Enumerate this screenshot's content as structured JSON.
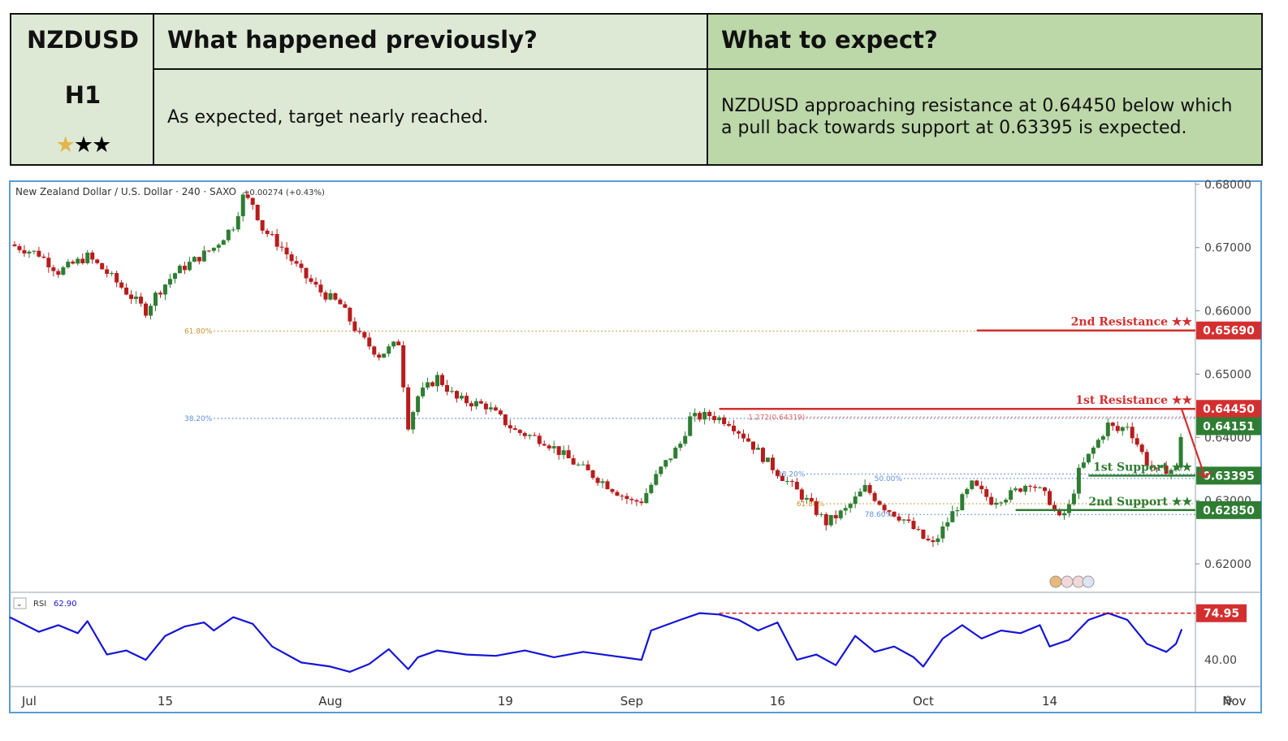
{
  "header": {
    "symbol": "NZDUSD",
    "timeframe": "H1",
    "rating": {
      "filled": 1,
      "total": 3
    },
    "previous_title": "What happened previously?",
    "previous_text": "As expected, target nearly reached.",
    "expect_title": "What to expect?",
    "expect_text": "NZDUSD approaching resistance at 0.64450 below which a pull back towards support at 0.63395 is expected."
  },
  "colors": {
    "header_light": "#dde9d5",
    "header_dark": "#bcd7a8",
    "resistance": "#d32f2f",
    "support": "#2e7d32",
    "rsi_line": "#1515d6",
    "candle_up": "#2e7d32",
    "candle_down": "#b71c1c",
    "frame": "#5b9bd5"
  },
  "chart_data": {
    "type": "candlestick",
    "title": "New Zealand Dollar / U.S. Dollar · 240 · SAXO",
    "change_text": "+0.00274 (+0.43%)",
    "ylim": [
      0.6155,
      0.6805
    ],
    "y_ticks": [
      "0.68000",
      "0.67000",
      "0.66000",
      "0.65000",
      "0.64000",
      "0.63000",
      "0.62000"
    ],
    "x_ticks": [
      "Jul",
      "15",
      "Aug",
      "19",
      "Sep",
      "16",
      "Oct",
      "14",
      "Nov"
    ],
    "x_tick_days": [
      0,
      14,
      31,
      49,
      62,
      77,
      92,
      105,
      124
    ],
    "x_range_days": [
      -2,
      120
    ],
    "close_path": [
      {
        "day": -2,
        "close": 0.6705
      },
      {
        "day": 1,
        "close": 0.669
      },
      {
        "day": 3,
        "close": 0.6662
      },
      {
        "day": 6,
        "close": 0.6686
      },
      {
        "day": 8,
        "close": 0.666
      },
      {
        "day": 10,
        "close": 0.663
      },
      {
        "day": 12,
        "close": 0.66
      },
      {
        "day": 13,
        "close": 0.6625
      },
      {
        "day": 15,
        "close": 0.666
      },
      {
        "day": 17,
        "close": 0.668
      },
      {
        "day": 19,
        "close": 0.67
      },
      {
        "day": 21,
        "close": 0.6735
      },
      {
        "day": 22,
        "close": 0.678
      },
      {
        "day": 23,
        "close": 0.677
      },
      {
        "day": 24,
        "close": 0.673
      },
      {
        "day": 26,
        "close": 0.67
      },
      {
        "day": 28,
        "close": 0.666
      },
      {
        "day": 30,
        "close": 0.663
      },
      {
        "day": 32,
        "close": 0.661
      },
      {
        "day": 34,
        "close": 0.656
      },
      {
        "day": 36,
        "close": 0.653
      },
      {
        "day": 38,
        "close": 0.655
      },
      {
        "day": 39,
        "close": 0.642
      },
      {
        "day": 40,
        "close": 0.6465
      },
      {
        "day": 42,
        "close": 0.6495
      },
      {
        "day": 44,
        "close": 0.646
      },
      {
        "day": 47,
        "close": 0.645
      },
      {
        "day": 50,
        "close": 0.641
      },
      {
        "day": 53,
        "close": 0.6395
      },
      {
        "day": 56,
        "close": 0.636
      },
      {
        "day": 59,
        "close": 0.633
      },
      {
        "day": 62,
        "close": 0.6298
      },
      {
        "day": 63,
        "close": 0.63
      },
      {
        "day": 65,
        "close": 0.635
      },
      {
        "day": 67,
        "close": 0.639
      },
      {
        "day": 68,
        "close": 0.643
      },
      {
        "day": 70,
        "close": 0.6435
      },
      {
        "day": 72,
        "close": 0.6425
      },
      {
        "day": 74,
        "close": 0.6395
      },
      {
        "day": 76,
        "close": 0.636
      },
      {
        "day": 78,
        "close": 0.633
      },
      {
        "day": 80,
        "close": 0.63
      },
      {
        "day": 82,
        "close": 0.6265
      },
      {
        "day": 84,
        "close": 0.6285
      },
      {
        "day": 86,
        "close": 0.632
      },
      {
        "day": 88,
        "close": 0.629
      },
      {
        "day": 90,
        "close": 0.627
      },
      {
        "day": 92,
        "close": 0.624
      },
      {
        "day": 93,
        "close": 0.623
      },
      {
        "day": 95,
        "close": 0.628
      },
      {
        "day": 97,
        "close": 0.6325
      },
      {
        "day": 99,
        "close": 0.63
      },
      {
        "day": 101,
        "close": 0.631
      },
      {
        "day": 103,
        "close": 0.633
      },
      {
        "day": 105,
        "close": 0.63
      },
      {
        "day": 106,
        "close": 0.627
      },
      {
        "day": 107,
        "close": 0.629
      },
      {
        "day": 108,
        "close": 0.6345
      },
      {
        "day": 110,
        "close": 0.6395
      },
      {
        "day": 111,
        "close": 0.642
      },
      {
        "day": 112,
        "close": 0.641
      },
      {
        "day": 113,
        "close": 0.642
      },
      {
        "day": 114,
        "close": 0.639
      },
      {
        "day": 115,
        "close": 0.636
      },
      {
        "day": 116,
        "close": 0.6345
      },
      {
        "day": 117,
        "close": 0.635
      },
      {
        "day": 118,
        "close": 0.6348
      },
      {
        "day": 118.6,
        "close": 0.6415
      }
    ],
    "levels": [
      {
        "name": "2nd Resistance",
        "label": "2nd Resistance ★★",
        "value": 0.6569,
        "value_label": "0.65690",
        "kind": "resistance",
        "from_day": 97.5
      },
      {
        "name": "1st Resistance",
        "label": "1st Resistance ★★",
        "value": 0.6445,
        "value_label": "0.64450",
        "kind": "resistance",
        "from_day": 71
      },
      {
        "name": "1st Support",
        "label": "1st Support ★★",
        "value": 0.63395,
        "value_label": "0.63395",
        "kind": "support",
        "from_day": 109
      },
      {
        "name": "2nd Support",
        "label": "2nd Support ★★",
        "value": 0.6285,
        "value_label": "0.62850",
        "kind": "support",
        "from_day": 101.5
      }
    ],
    "current_price": {
      "value": 0.64151,
      "label": "0.64151"
    },
    "fibonacci": [
      {
        "label": "61.80%",
        "value": 0.6568,
        "color": "#c8952b",
        "from_day": 19
      },
      {
        "label": "38.20%",
        "value": 0.643,
        "color": "#5b8fd6",
        "from_day": 19
      },
      {
        "label": "1.272(0.64319)",
        "value": 0.6432,
        "color": "#d66",
        "from_day": 80
      },
      {
        "label": "38.20%",
        "value": 0.6342,
        "color": "#5b8fd6",
        "from_day": 80
      },
      {
        "label": "50.00%",
        "value": 0.6335,
        "color": "#5b8fd6",
        "from_day": 90
      },
      {
        "label": "61.80%",
        "value": 0.6295,
        "color": "#c8952b",
        "from_day": 82
      },
      {
        "label": "78.60%",
        "value": 0.6278,
        "color": "#5b8fd6",
        "from_day": 89
      }
    ],
    "projection": {
      "from_day": 118.6,
      "from_value": 0.6444,
      "to_day": 121,
      "to_value": 0.63365
    },
    "rsi": {
      "label": "RSI",
      "value_text": "62.90",
      "ylim": [
        20,
        90
      ],
      "y_ticks": [
        {
          "value": 40,
          "label": "40.00"
        }
      ],
      "marker": {
        "value": 74.95,
        "label": "74.95",
        "from_day": 71
      },
      "path": [
        {
          "day": -2,
          "v": 72
        },
        {
          "day": 1,
          "v": 61
        },
        {
          "day": 3,
          "v": 66
        },
        {
          "day": 5,
          "v": 60
        },
        {
          "day": 6,
          "v": 69
        },
        {
          "day": 8,
          "v": 44
        },
        {
          "day": 10,
          "v": 47
        },
        {
          "day": 12,
          "v": 40
        },
        {
          "day": 14,
          "v": 58
        },
        {
          "day": 16,
          "v": 65
        },
        {
          "day": 18,
          "v": 68
        },
        {
          "day": 19,
          "v": 62
        },
        {
          "day": 21,
          "v": 72
        },
        {
          "day": 23,
          "v": 67
        },
        {
          "day": 25,
          "v": 50
        },
        {
          "day": 28,
          "v": 38
        },
        {
          "day": 31,
          "v": 35
        },
        {
          "day": 33,
          "v": 31
        },
        {
          "day": 35,
          "v": 37
        },
        {
          "day": 37,
          "v": 48
        },
        {
          "day": 39,
          "v": 33
        },
        {
          "day": 40,
          "v": 42
        },
        {
          "day": 42,
          "v": 47
        },
        {
          "day": 45,
          "v": 44
        },
        {
          "day": 48,
          "v": 43
        },
        {
          "day": 51,
          "v": 47
        },
        {
          "day": 54,
          "v": 42
        },
        {
          "day": 57,
          "v": 46
        },
        {
          "day": 60,
          "v": 43
        },
        {
          "day": 63,
          "v": 40
        },
        {
          "day": 64,
          "v": 62
        },
        {
          "day": 67,
          "v": 70
        },
        {
          "day": 69,
          "v": 75
        },
        {
          "day": 71,
          "v": 74
        },
        {
          "day": 73,
          "v": 70
        },
        {
          "day": 75,
          "v": 62
        },
        {
          "day": 77,
          "v": 68
        },
        {
          "day": 79,
          "v": 40
        },
        {
          "day": 81,
          "v": 44
        },
        {
          "day": 83,
          "v": 36
        },
        {
          "day": 85,
          "v": 58
        },
        {
          "day": 87,
          "v": 46
        },
        {
          "day": 89,
          "v": 50
        },
        {
          "day": 91,
          "v": 42
        },
        {
          "day": 92,
          "v": 35
        },
        {
          "day": 94,
          "v": 56
        },
        {
          "day": 96,
          "v": 66
        },
        {
          "day": 98,
          "v": 56
        },
        {
          "day": 100,
          "v": 62
        },
        {
          "day": 102,
          "v": 60
        },
        {
          "day": 104,
          "v": 66
        },
        {
          "day": 105,
          "v": 50
        },
        {
          "day": 107,
          "v": 55
        },
        {
          "day": 109,
          "v": 70
        },
        {
          "day": 111,
          "v": 75
        },
        {
          "day": 113,
          "v": 70
        },
        {
          "day": 115,
          "v": 52
        },
        {
          "day": 117,
          "v": 46
        },
        {
          "day": 118,
          "v": 52
        },
        {
          "day": 118.6,
          "v": 63
        }
      ]
    }
  }
}
